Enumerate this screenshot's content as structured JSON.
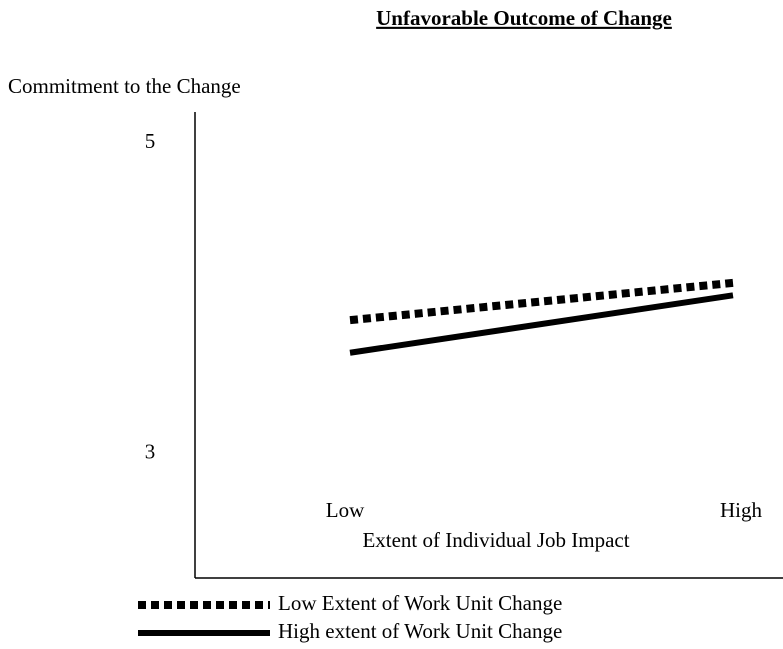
{
  "chart_data": {
    "type": "line",
    "title": "Unfavorable Outcome of Change",
    "y_label": "Commitment to the Change",
    "x_label": "Extent of Individual Job Impact",
    "categories": [
      "Low",
      "High"
    ],
    "series": [
      {
        "name": "Low Extent of Work Unit Change",
        "color": "#000000",
        "line_style": "dotted",
        "values": [
          3.86,
          4.1
        ]
      },
      {
        "name": "High extent of Work Unit Change",
        "color": "#000000",
        "line_style": "solid",
        "values": [
          3.65,
          4.02
        ]
      }
    ],
    "ylim": [
      2.2,
      5.2
    ],
    "yticks": [
      3,
      5
    ],
    "grid": false,
    "legend": "bottom"
  }
}
